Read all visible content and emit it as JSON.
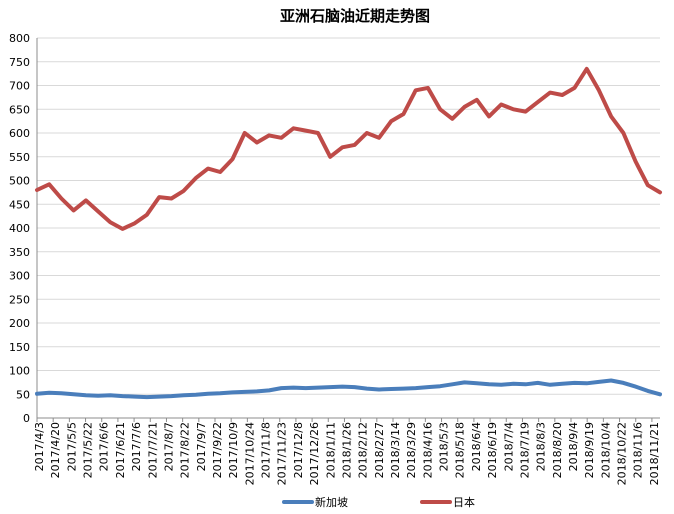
{
  "chart_data": {
    "type": "line",
    "title": "亚洲石脑油近期走势图",
    "xlabel": "",
    "ylabel": "",
    "ylim": [
      0,
      800
    ],
    "yticks": [
      0,
      50,
      100,
      150,
      200,
      250,
      300,
      350,
      400,
      450,
      500,
      550,
      600,
      650,
      700,
      750,
      800
    ],
    "grid": true,
    "legend_position": "bottom",
    "x_tick_labels": [
      "2017/4/3",
      "2017/4/20",
      "2017/5/5",
      "2017/5/22",
      "2017/6/6",
      "2017/6/21",
      "2017/7/6",
      "2017/7/21",
      "2017/8/7",
      "2017/8/22",
      "2017/9/7",
      "2017/9/22",
      "2017/10/9",
      "2017/10/24",
      "2017/11/8",
      "2017/11/23",
      "2017/12/8",
      "2017/12/26",
      "2018/1/11",
      "2018/1/26",
      "2018/2/12",
      "2018/2/27",
      "2018/3/14",
      "2018/3/29",
      "2018/4/16",
      "2018/5/3",
      "2018/5/18",
      "2018/6/4",
      "2018/6/19",
      "2018/7/4",
      "2018/7/19",
      "2018/8/3",
      "2018/8/20",
      "2018/9/4",
      "2018/9/19",
      "2018/10/4",
      "2018/10/22",
      "2018/11/6",
      "2018/11/21"
    ],
    "series": [
      {
        "name": "新加坡",
        "color": "#4a7ebb",
        "values": [
          51,
          53,
          52,
          50,
          48,
          47,
          48,
          46,
          45,
          44,
          45,
          46,
          48,
          49,
          51,
          52,
          54,
          55,
          56,
          58,
          63,
          64,
          63,
          64,
          65,
          66,
          65,
          62,
          60,
          61,
          62,
          63,
          65,
          67,
          71,
          75,
          73,
          71,
          70,
          72,
          71,
          74,
          70,
          72,
          74,
          73,
          76,
          79,
          74,
          66,
          57,
          50
        ]
      },
      {
        "name": "日本",
        "color": "#be4b48",
        "values": [
          480,
          492,
          462,
          437,
          458,
          435,
          412,
          398,
          410,
          428,
          465,
          462,
          478,
          505,
          525,
          518,
          545,
          600,
          580,
          595,
          590,
          610,
          605,
          600,
          550,
          570,
          575,
          600,
          590,
          625,
          640,
          690,
          695,
          650,
          630,
          655,
          670,
          635,
          660,
          650,
          645,
          665,
          685,
          680,
          695,
          735,
          690,
          635,
          600,
          540,
          490,
          475
        ]
      }
    ]
  }
}
